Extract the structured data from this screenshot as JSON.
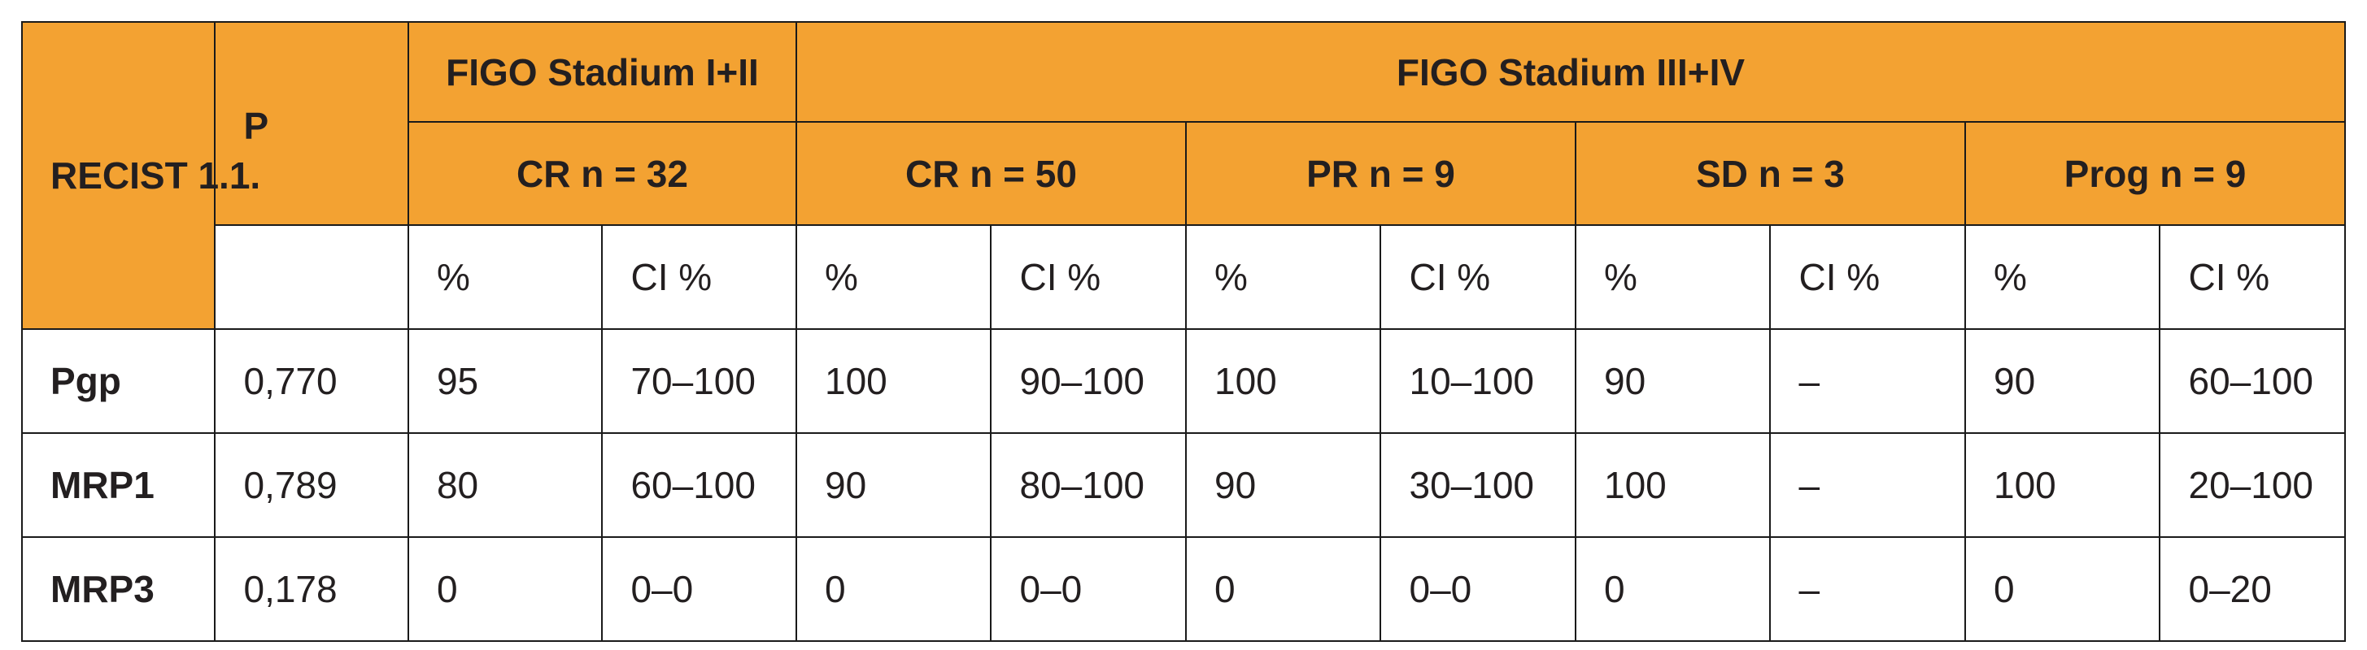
{
  "header": {
    "recist": "RECIST 1.1.",
    "p": "P",
    "group_early": "FIGO Stadium I+II",
    "group_late": "FIGO Stadium III+IV",
    "subgroups": [
      "CR n = 32",
      "CR n = 50",
      "PR n = 9",
      "SD n = 3",
      "Prog n = 9"
    ],
    "pct": "%",
    "ci": "CI %"
  },
  "rows": [
    {
      "label": "Pgp",
      "p": "0,770",
      "values": [
        "95",
        "70–100",
        "100",
        "90–100",
        "100",
        "10–100",
        "90",
        "–",
        "90",
        "60–100"
      ]
    },
    {
      "label": "MRP1",
      "p": "0,789",
      "values": [
        "80",
        "60–100",
        "90",
        "80–100",
        "90",
        "30–100",
        "100",
        "–",
        "100",
        "20–100"
      ]
    },
    {
      "label": "MRP3",
      "p": "0,178",
      "values": [
        "0",
        "0–0",
        "0",
        "0–0",
        "0",
        "0–0",
        "0",
        "–",
        "0",
        "0–20"
      ]
    }
  ]
}
